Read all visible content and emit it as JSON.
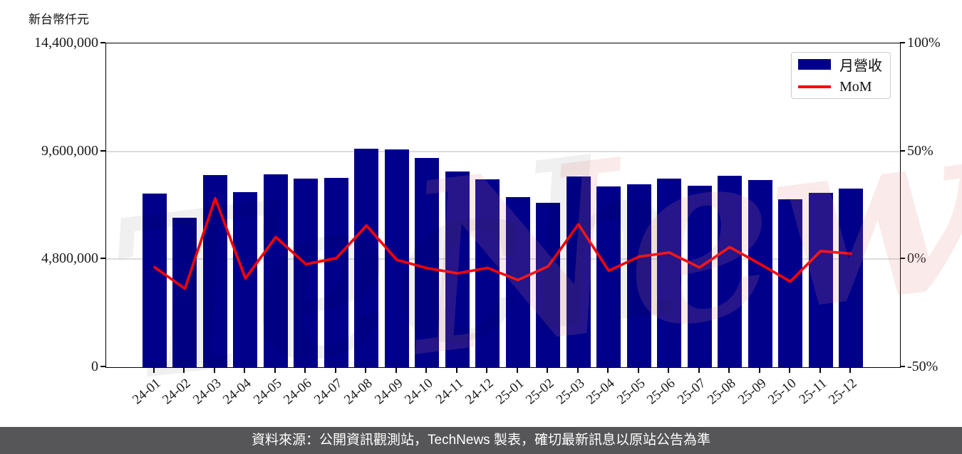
{
  "unit_label": "新台幣仟元",
  "legend": {
    "bar_label": "月營收",
    "line_label": "MoM"
  },
  "footer": {
    "text": "資料來源：公開資訊觀測站，TechNews 製表，確切最新訊息以原站公告為準"
  },
  "watermark": {
    "text_gray": "Tech",
    "text_pink": "News"
  },
  "colors": {
    "bar": "#00008b",
    "line": "#ff0000",
    "grid": "#dcdcdc",
    "footer_bg": "#565658",
    "watermark_pink": "#e08080",
    "watermark_gray": "#9a9a9a"
  },
  "chart_data": {
    "type": "bar",
    "title": "",
    "xlabel": "",
    "ylabel": "新台幣仟元",
    "categories": [
      "24-01",
      "24-02",
      "24-03",
      "24-04",
      "24-05",
      "24-06",
      "24-07",
      "24-08",
      "24-09",
      "24-10",
      "24-11",
      "24-12",
      "25-01",
      "25-02",
      "25-03",
      "25-04",
      "25-05",
      "25-06",
      "25-07",
      "25-08",
      "25-09",
      "25-10",
      "25-11",
      "25-12"
    ],
    "series": [
      {
        "name": "月營收",
        "type": "bar",
        "axis": "left",
        "unit": "新台幣仟元",
        "values": [
          7710000,
          6660000,
          8540000,
          7780000,
          8580000,
          8380000,
          8420000,
          9730000,
          9700000,
          9300000,
          8700000,
          8350000,
          7550000,
          7300000,
          8480000,
          8030000,
          8130000,
          8380000,
          8060000,
          8510000,
          8320000,
          7460000,
          7740000,
          7940000
        ]
      },
      {
        "name": "MoM",
        "type": "line",
        "axis": "right",
        "unit": "%",
        "values": [
          -3.7,
          -13.6,
          28.2,
          -8.9,
          10.3,
          -2.3,
          0.5,
          15.6,
          -0.3,
          -4.1,
          -6.5,
          -4.0,
          -9.6,
          -3.3,
          16.2,
          -5.3,
          1.2,
          3.1,
          -3.8,
          5.6,
          -2.2,
          -10.3,
          3.8,
          2.6
        ]
      }
    ],
    "left_axis": {
      "tick_labels": [
        "14,400,000",
        "9,600,000",
        "4,800,000",
        "0"
      ],
      "tick_values": [
        14400000,
        9600000,
        4800000,
        0
      ],
      "range": [
        0,
        14400000
      ]
    },
    "right_axis": {
      "tick_labels": [
        "100%",
        "50%",
        "0%",
        "-50%"
      ],
      "tick_values": [
        100,
        50,
        0,
        -50
      ],
      "range": [
        -50,
        100
      ]
    },
    "grid": "horizontal",
    "legend_position": "upper right"
  }
}
